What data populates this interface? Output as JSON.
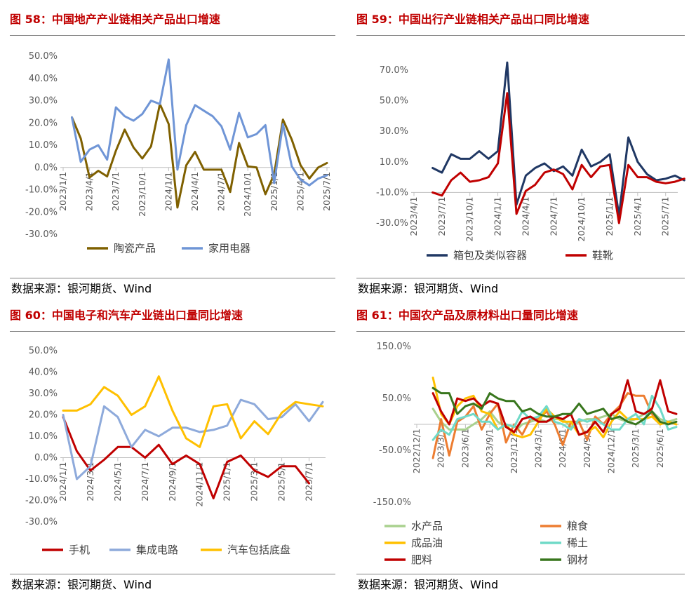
{
  "charts": [
    {
      "title": "图 58：中国地产产业链相关产品出口增速",
      "source": "数据来源：银河期货、Wind",
      "chart_data": {
        "type": "line",
        "ylim": [
          -30,
          50
        ],
        "yticks": [
          -30,
          -20,
          -10,
          0,
          10,
          20,
          30,
          40,
          50
        ],
        "ytick_labels": [
          "-30.0%",
          "-20.0%",
          "-10.0%",
          "0.0%",
          "10.0%",
          "20.0%",
          "30.0%",
          "40.0%",
          "50.0%"
        ],
        "x_start": "2023/1",
        "xtick_labels": [
          "2023/1/1",
          "2023/4/1",
          "2023/7/1",
          "2023/10/1",
          "2024/1/1",
          "2024/4/1",
          "2024/7/1",
          "2024/10/1",
          "2025/1/1",
          "2025/4/1",
          "2025/7/1"
        ],
        "series": [
          {
            "name": "陶瓷产品",
            "color": "#7f6000",
            "start": 1,
            "values": [
              22.5,
              13,
              -4.5,
              -1.5,
              -4,
              7.5,
              17,
              9,
              4,
              9.5,
              28.5,
              19.5,
              -18,
              1,
              7,
              -1,
              -1,
              -1,
              -11,
              11,
              0.5,
              0,
              -12,
              -3,
              21.5,
              12.5,
              1,
              -5,
              0,
              2
            ]
          },
          {
            "name": "家用电器",
            "color": "#6f95d6",
            "start": 1,
            "values": [
              22.5,
              2.5,
              8,
              10,
              3.5,
              27,
              23,
              21,
              24,
              30,
              28.5,
              48.5,
              -1,
              19,
              28,
              25.5,
              23,
              18.5,
              8,
              24.5,
              13.5,
              15,
              19,
              -7,
              19.5,
              0.5,
              -5.5,
              -8,
              -5,
              -3.5
            ]
          }
        ]
      }
    },
    {
      "title": "图 59：中国出行产业链相关产品出口同比增速",
      "source": "数据来源：银河期货、Wind",
      "chart_data": {
        "type": "line",
        "ylim": [
          -30,
          70
        ],
        "yticks": [
          -30,
          -10,
          10,
          30,
          50,
          70
        ],
        "ytick_labels": [
          "-30.0%",
          "-10.0%",
          "10.0%",
          "30.0%",
          "50.0%",
          "70.0%"
        ],
        "x_start": "2023/4",
        "xtick_labels": [
          "2023/4/1",
          "2023/7/1",
          "2023/10/1",
          "2024/1/1",
          "2024/4/1",
          "2024/7/1",
          "2024/10/1",
          "2025/1/1",
          "2025/4/1",
          "2025/7/1"
        ],
        "series": [
          {
            "name": "箱包及类似容器",
            "color": "#203864",
            "start": 2,
            "values": [
              6,
              3,
              15,
              12,
              12,
              17,
              12,
              17,
              75,
              -18,
              1,
              6,
              9,
              4,
              7,
              1,
              18,
              7,
              10,
              15,
              -25,
              26,
              10,
              2,
              -2,
              -1,
              1,
              -2
            ]
          },
          {
            "name": "鞋靴",
            "color": "#c00000",
            "start": 2,
            "values": [
              -10,
              -12,
              -2,
              3,
              -3,
              -2,
              0,
              9,
              55,
              -24,
              -9,
              -5,
              3,
              5,
              2,
              -8,
              8,
              0,
              7,
              8,
              -30,
              8,
              0,
              0,
              -3,
              -4,
              -3,
              -1
            ]
          }
        ]
      }
    },
    {
      "title": "图 60：中国电子和汽车产业链出口量同比增速",
      "source": "数据来源：银河期货、Wind",
      "chart_data": {
        "type": "line",
        "ylim": [
          -30,
          50
        ],
        "yticks": [
          -30,
          -20,
          -10,
          0,
          10,
          20,
          30,
          40,
          50
        ],
        "ytick_labels": [
          "-30.0%",
          "-20.0%",
          "-10.0%",
          "0.0%",
          "10.0%",
          "20.0%",
          "30.0%",
          "40.0%",
          "50.0%"
        ],
        "x_start": "2024/1",
        "xtick_labels": [
          "2024/1/1",
          "2024/3/1",
          "2024/5/1",
          "2024/7/1",
          "2024/9/1",
          "2024/11/1",
          "2025/1/1",
          "2025/3/1",
          "2025/5/1",
          "2025/7/1"
        ],
        "series": [
          {
            "name": "手机",
            "color": "#c00000",
            "start": 0,
            "values": [
              19,
              3,
              -6,
              -1,
              5,
              5,
              0,
              6,
              -3,
              1,
              -3,
              -19,
              -2,
              1,
              -6,
              -9,
              -4,
              -4,
              -12
            ]
          },
          {
            "name": "集成电路",
            "color": "#8eaadb",
            "start": 0,
            "values": [
              20,
              -10,
              -4,
              24,
              19,
              5,
              13,
              10,
              14,
              14,
              12,
              13,
              15,
              27,
              25,
              18,
              19,
              25,
              17,
              26
            ]
          },
          {
            "name": "汽车包括底盘",
            "color": "#ffc000",
            "start": 0,
            "values": [
              22,
              22,
              25,
              33,
              29,
              20,
              24,
              38,
              22,
              9,
              5,
              24,
              25,
              9,
              17,
              11,
              21,
              26,
              25,
              24
            ]
          }
        ]
      }
    },
    {
      "title": "图 61：中国农产品及原材料出口量同比增速",
      "source": "数据来源：银河期货、Wind",
      "chart_data": {
        "type": "line",
        "ylim": [
          -150,
          150
        ],
        "yticks": [
          -150,
          -50,
          50,
          150
        ],
        "ytick_labels": [
          "-150.0%",
          "-50.0%",
          "50.0%",
          "150.0%"
        ],
        "x_start": "2022/12",
        "xtick_labels": [
          "2022/12/1",
          "2023/3/1",
          "2023/6/1",
          "2023/9/1",
          "2023/12/1",
          "2024/3/1",
          "2024/6/1",
          "2024/9/1",
          "2024/12/1",
          "2025/3/1",
          "2025/6/1"
        ],
        "series": [
          {
            "name": "水产品",
            "color": "#a9d18e",
            "start": 2,
            "values": [
              30,
              5,
              -10,
              -10,
              -10,
              0,
              10,
              25,
              5,
              -5,
              -15,
              0,
              5,
              10,
              5,
              10,
              10,
              -5,
              5,
              10,
              10,
              15,
              20,
              10,
              5,
              10,
              20,
              25,
              10,
              5,
              10
            ]
          },
          {
            "name": "粮食",
            "color": "#ed7d31",
            "start": 2,
            "values": [
              -65,
              10,
              -60,
              5,
              15,
              35,
              -10,
              20,
              40,
              -35,
              0,
              -20,
              10,
              10,
              25,
              0,
              -40,
              5,
              5,
              -30,
              15,
              0,
              20,
              35,
              60,
              55,
              55,
              20,
              0,
              5,
              0
            ]
          },
          {
            "name": "成品油",
            "color": "#ffc000",
            "start": 2,
            "values": [
              90,
              20,
              0,
              35,
              50,
              55,
              25,
              20,
              -10,
              0,
              -20,
              -25,
              -20,
              5,
              30,
              15,
              5,
              5,
              -20,
              -15,
              -5,
              -25,
              5,
              25,
              10,
              10,
              10,
              15,
              0,
              5,
              0
            ]
          },
          {
            "name": "稀土",
            "color": "#70dac8",
            "start": 2,
            "values": [
              -30,
              -10,
              -20,
              10,
              15,
              20,
              5,
              5,
              -10,
              0,
              -5,
              25,
              10,
              15,
              35,
              5,
              0,
              -10,
              10,
              5,
              10,
              0,
              -10,
              -10,
              10,
              20,
              0,
              55,
              30,
              -10,
              -5
            ]
          },
          {
            "name": "肥料",
            "color": "#c00000",
            "start": 2,
            "values": [
              60,
              25,
              0,
              50,
              45,
              50,
              35,
              45,
              40,
              -5,
              -15,
              10,
              15,
              5,
              5,
              15,
              10,
              20,
              -20,
              -15,
              5,
              -15,
              20,
              30,
              85,
              25,
              20,
              30,
              85,
              25,
              20
            ]
          },
          {
            "name": "钢材",
            "color": "#38761d",
            "start": 2,
            "values": [
              70,
              60,
              60,
              20,
              35,
              40,
              30,
              60,
              50,
              45,
              45,
              25,
              30,
              20,
              15,
              15,
              20,
              20,
              40,
              20,
              25,
              30,
              10,
              15,
              5,
              0,
              10,
              25,
              5,
              0,
              5
            ]
          }
        ]
      }
    }
  ]
}
